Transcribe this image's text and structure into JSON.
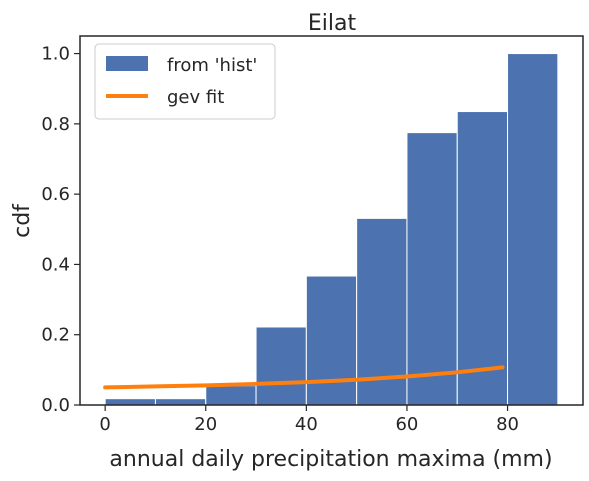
{
  "chart_data": {
    "type": "bar",
    "title": "Eilat",
    "xlabel": "annual daily precipitation maxima (mm)",
    "ylabel": "cdf",
    "xlim": [
      -5,
      95
    ],
    "ylim": [
      0,
      1.05
    ],
    "x_ticks": [
      0,
      20,
      40,
      60,
      80
    ],
    "y_ticks": [
      0.0,
      0.2,
      0.4,
      0.6,
      0.8,
      1.0
    ],
    "x_tick_labels": [
      "0",
      "20",
      "40",
      "60",
      "80"
    ],
    "y_tick_labels": [
      "0.0",
      "0.2",
      "0.4",
      "0.6",
      "0.8",
      "1.0"
    ],
    "grid": false,
    "legend_position": "top-left",
    "series": [
      {
        "name": "from 'hist'",
        "kind": "histogram",
        "color": "#4c72b0",
        "bin_edges": [
          0,
          10,
          20,
          30,
          40,
          50,
          60,
          70,
          80,
          90
        ],
        "values": [
          0.018,
          0.018,
          0.055,
          0.222,
          0.367,
          0.531,
          0.775,
          0.835,
          1.0
        ]
      },
      {
        "name": "gev fit",
        "kind": "line",
        "color": "#ff7f0e",
        "x": [
          0,
          10,
          20,
          30,
          40,
          50,
          60,
          70,
          79
        ],
        "y": [
          0.05,
          0.053,
          0.056,
          0.06,
          0.065,
          0.072,
          0.081,
          0.093,
          0.107
        ]
      }
    ]
  }
}
